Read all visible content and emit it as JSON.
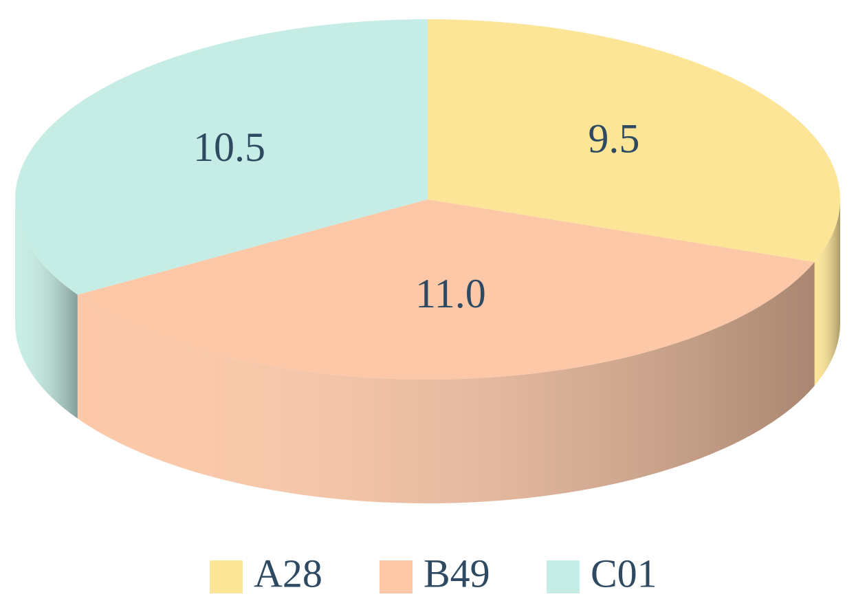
{
  "chart_data": {
    "type": "pie3d",
    "categories": [
      "A28",
      "B49",
      "C01"
    ],
    "values": [
      9.5,
      11,
      10.5
    ],
    "value_labels": [
      "9.5",
      "11.0",
      "10.5"
    ],
    "colors": [
      "#fde597",
      "#fcc8a8",
      "#c6ede5"
    ],
    "legend": "bottom"
  }
}
